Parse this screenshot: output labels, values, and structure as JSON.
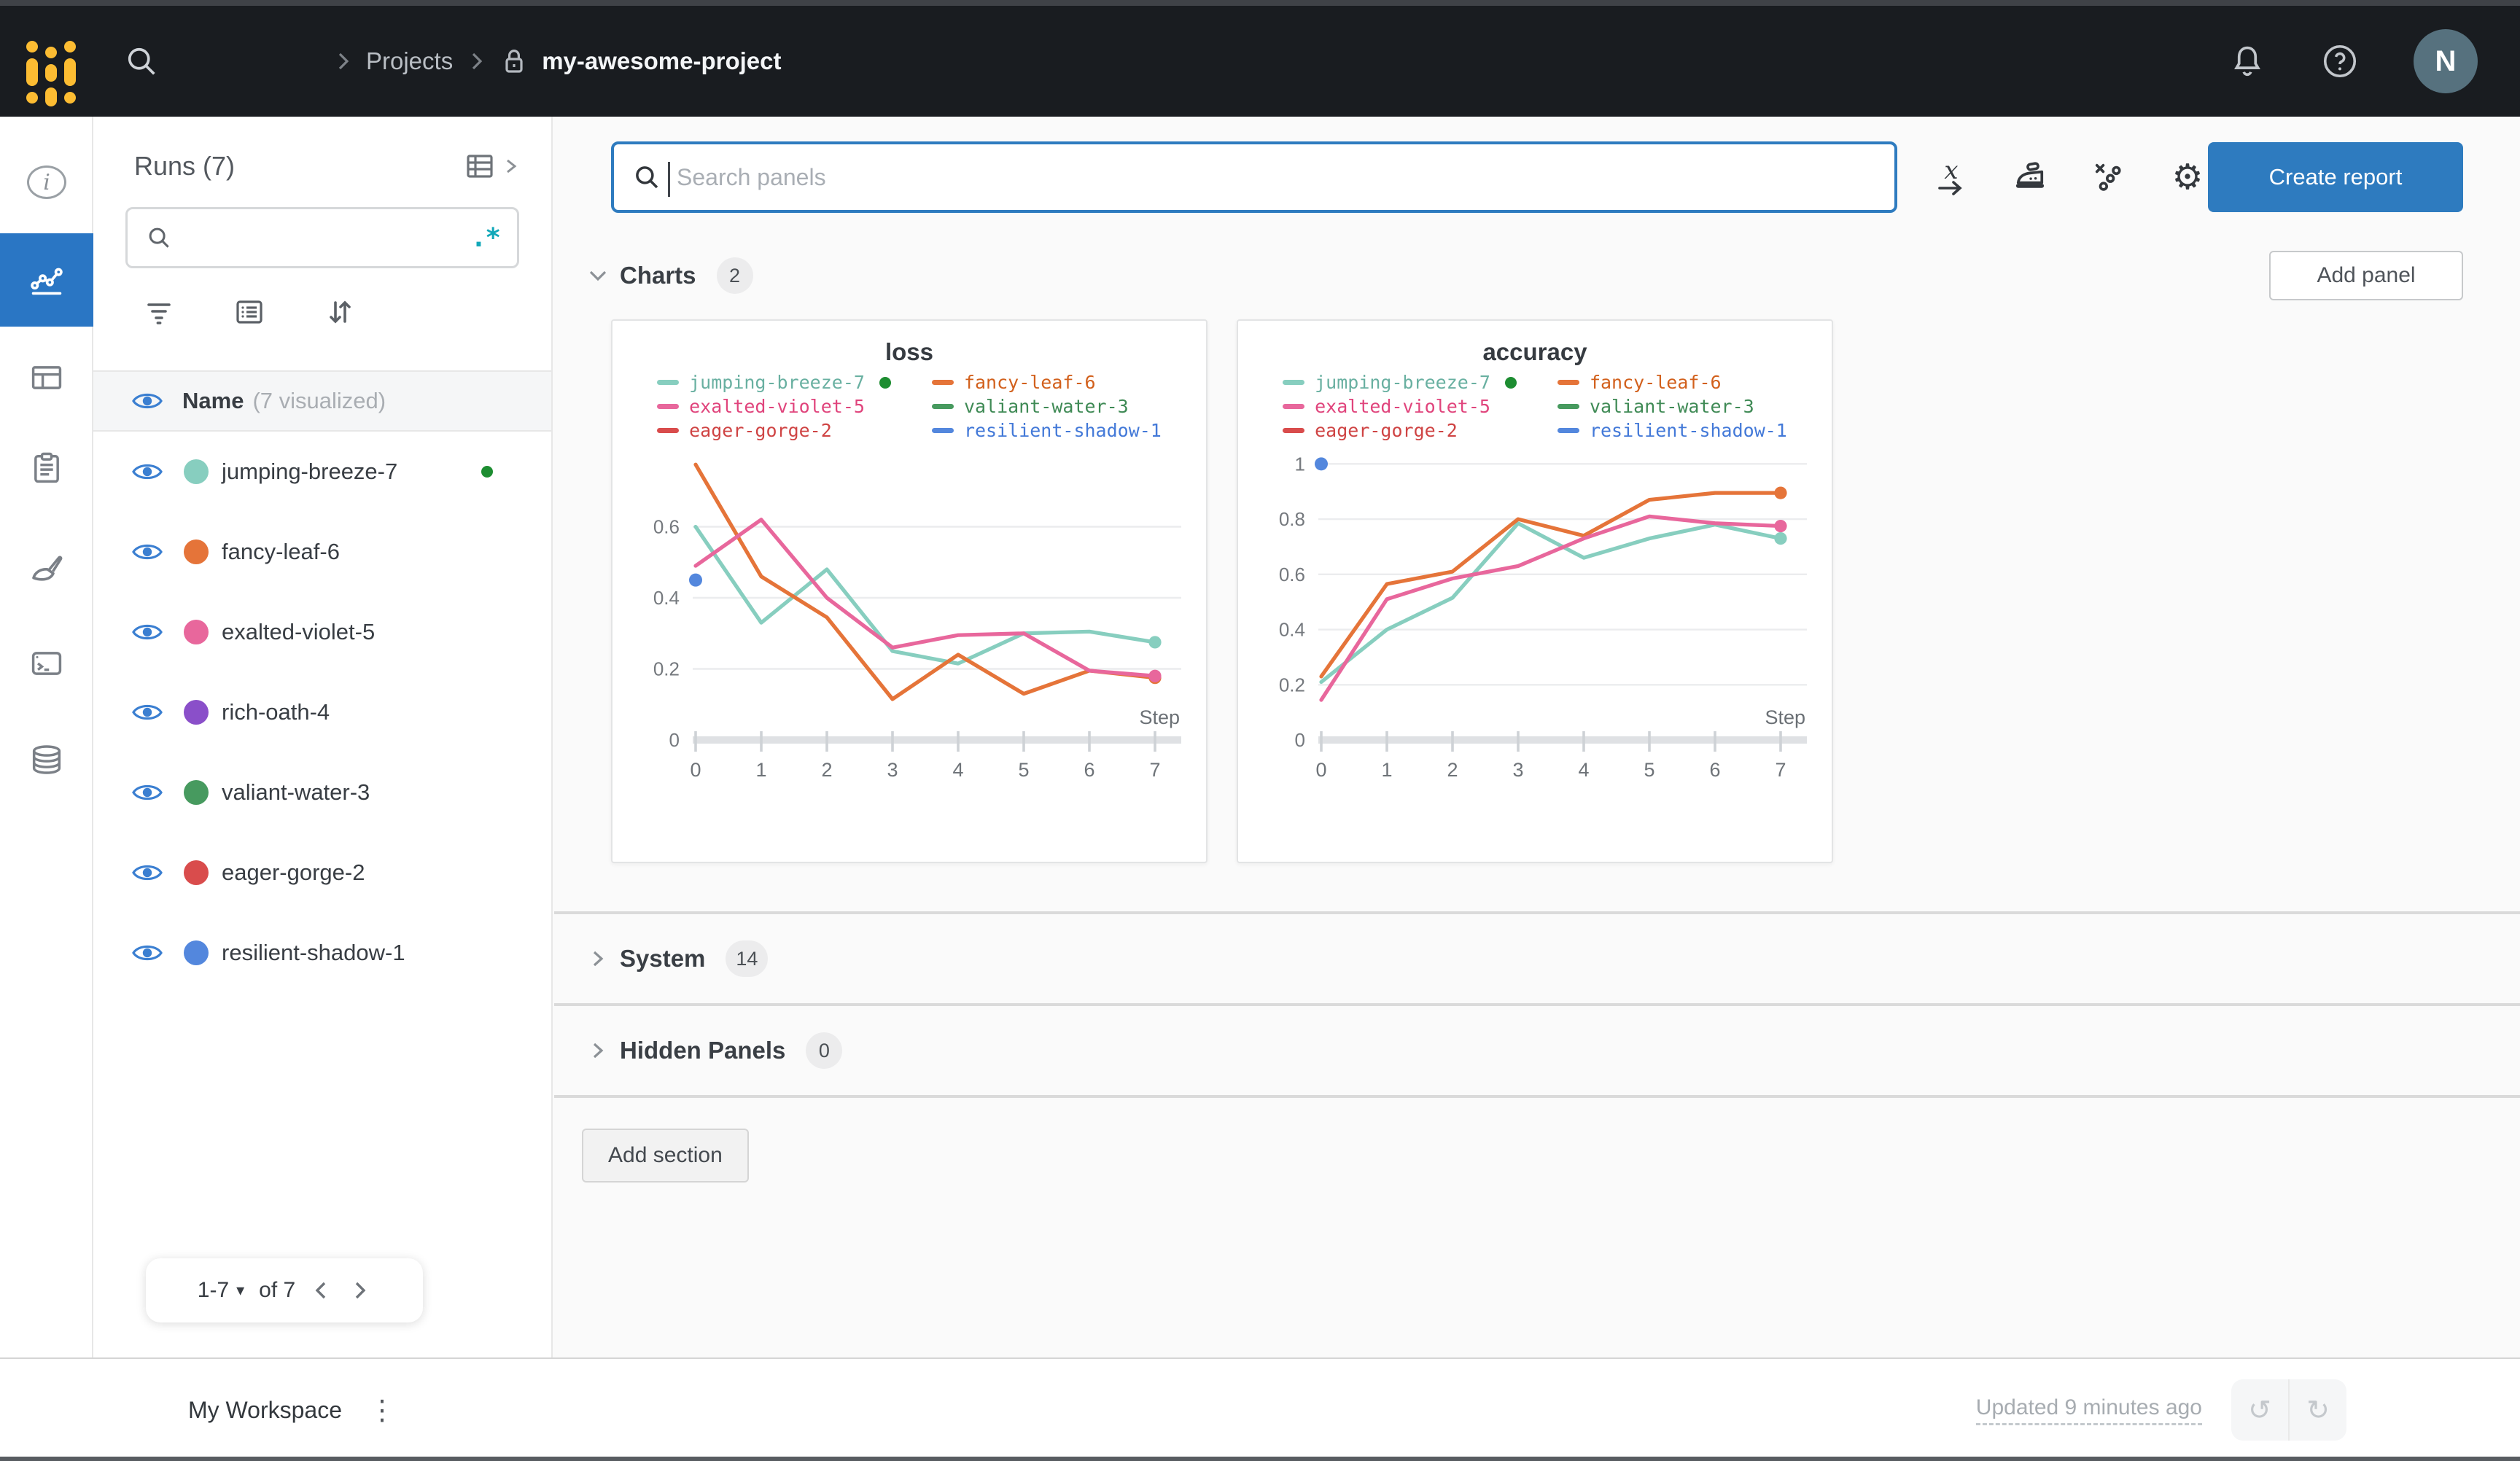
{
  "colors": {
    "accent_blue": "#2e7bbf",
    "topbar_bg": "#191c20",
    "rail_selected_bg": "#2a76c4",
    "active_run_green": "#1d8d31",
    "regex_teal": "#12a8b9",
    "avatar_bg": "#56717e",
    "eye_blue": "#3b7fd1"
  },
  "topbar": {
    "breadcrumb_projects": "Projects",
    "breadcrumb_project": "my-awesome-project",
    "avatar_initial": "N"
  },
  "sidebar": {
    "title": "Runs (7)",
    "search_placeholder": "",
    "regex_icon": ".*",
    "name_header_label": "Name",
    "name_header_suffix": "(7 visualized)",
    "runs": [
      {
        "name": "jumping-breeze-7",
        "color": "#87cebf",
        "active": true
      },
      {
        "name": "fancy-leaf-6",
        "color": "#e57439",
        "active": false
      },
      {
        "name": "exalted-violet-5",
        "color": "#e8679c",
        "active": false
      },
      {
        "name": "rich-oath-4",
        "color": "#8a4fc9",
        "active": false
      },
      {
        "name": "valiant-water-3",
        "color": "#479a5f",
        "active": false
      },
      {
        "name": "eager-gorge-2",
        "color": "#d94c4c",
        "active": false
      },
      {
        "name": "resilient-shadow-1",
        "color": "#5387dd",
        "active": false
      }
    ],
    "pagination": {
      "range_label": "1-7",
      "of_label": "of 7"
    }
  },
  "panelbar": {
    "search_placeholder": "Search panels",
    "create_report_label": "Create report"
  },
  "sections": {
    "charts": {
      "label": "Charts",
      "count": "2"
    },
    "system": {
      "label": "System",
      "count": "14"
    },
    "hidden": {
      "label": "Hidden Panels",
      "count": "0"
    },
    "add_panel_label": "Add panel",
    "add_section_label": "Add section"
  },
  "footer": {
    "workspace_label": "My Workspace",
    "updated_label": "Updated 9 minutes ago"
  },
  "chart_data": [
    {
      "type": "line",
      "title": "loss",
      "xlabel": "Step",
      "x": [
        0,
        1,
        2,
        3,
        4,
        5,
        6,
        7
      ],
      "xticks": [
        0,
        1,
        2,
        3,
        4,
        5,
        6,
        7
      ],
      "yticks": [
        0,
        0.2,
        0.4,
        0.6
      ],
      "ylim": [
        0,
        0.8
      ],
      "grid": "horizontal",
      "legend_position": "top",
      "series": [
        {
          "name": "jumping-breeze-7",
          "color": "#87cebf",
          "label_color": "#69b0a1",
          "active": true,
          "end_dot": true,
          "values": [
            0.6,
            0.33,
            0.48,
            0.25,
            0.215,
            0.3,
            0.305,
            0.275
          ]
        },
        {
          "name": "fancy-leaf-6",
          "color": "#e57439",
          "label_color": "#d2601c",
          "end_dot": true,
          "values": [
            0.775,
            0.46,
            0.345,
            0.115,
            0.24,
            0.13,
            0.195,
            0.175
          ]
        },
        {
          "name": "exalted-violet-5",
          "color": "#e8679c",
          "label_color": "#e0447c",
          "end_dot": true,
          "values": [
            0.49,
            0.62,
            0.4,
            0.26,
            0.295,
            0.3,
            0.195,
            0.18
          ]
        },
        {
          "name": "valiant-water-3",
          "color": "#479a5f",
          "label_color": "#3f8a55",
          "values": []
        },
        {
          "name": "eager-gorge-2",
          "color": "#d94c4c",
          "label_color": "#cf4444",
          "values": []
        },
        {
          "name": "resilient-shadow-1",
          "color": "#5387dd",
          "label_color": "#4379d8",
          "values": [],
          "point": [
            0,
            0.45
          ]
        }
      ]
    },
    {
      "type": "line",
      "title": "accuracy",
      "xlabel": "Step",
      "x": [
        0,
        1,
        2,
        3,
        4,
        5,
        6,
        7
      ],
      "xticks": [
        0,
        1,
        2,
        3,
        4,
        5,
        6,
        7
      ],
      "yticks": [
        0,
        0.2,
        0.4,
        0.6,
        0.8,
        1
      ],
      "ylim": [
        0,
        1.03
      ],
      "grid": "horizontal",
      "legend_position": "top",
      "series": [
        {
          "name": "jumping-breeze-7",
          "color": "#87cebf",
          "label_color": "#69b0a1",
          "active": true,
          "end_dot": true,
          "values": [
            0.21,
            0.4,
            0.515,
            0.785,
            0.66,
            0.73,
            0.78,
            0.73
          ]
        },
        {
          "name": "fancy-leaf-6",
          "color": "#e57439",
          "label_color": "#d2601c",
          "end_dot": true,
          "values": [
            0.23,
            0.565,
            0.61,
            0.8,
            0.74,
            0.87,
            0.895,
            0.895
          ]
        },
        {
          "name": "exalted-violet-5",
          "color": "#e8679c",
          "label_color": "#e0447c",
          "end_dot": true,
          "values": [
            0.145,
            0.51,
            0.585,
            0.63,
            0.73,
            0.81,
            0.785,
            0.775
          ]
        },
        {
          "name": "valiant-water-3",
          "color": "#479a5f",
          "label_color": "#3f8a55",
          "values": []
        },
        {
          "name": "eager-gorge-2",
          "color": "#d94c4c",
          "label_color": "#cf4444",
          "values": []
        },
        {
          "name": "resilient-shadow-1",
          "color": "#5387dd",
          "label_color": "#4379d8",
          "values": [],
          "point": [
            0,
            1.0
          ]
        }
      ]
    }
  ]
}
